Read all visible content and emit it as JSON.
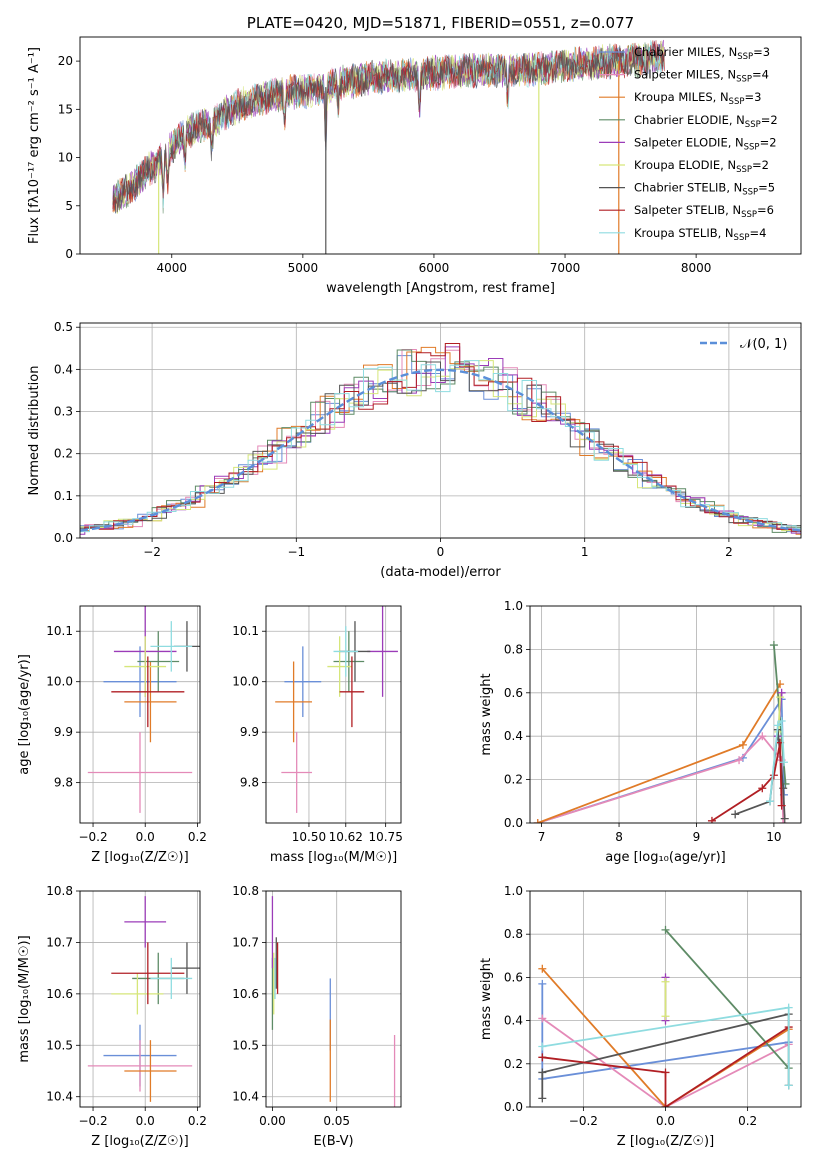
{
  "colors": {
    "chabrier_miles": "#6a8fd8",
    "salpeter_miles": "#e48ab8",
    "kroupa_miles": "#e07b28",
    "chabrier_elodie": "#5e8b66",
    "salpeter_elodie": "#9b3cb8",
    "kroupa_elodie": "#d6e67a",
    "chabrier_stelib": "#555555",
    "salpeter_stelib": "#b11f24",
    "kroupa_stelib": "#8fdce0",
    "gaussian": "#5b8fd9",
    "grid": "#b0b0b0"
  },
  "chart_data": [
    {
      "id": "spectrum",
      "type": "line",
      "title": "PLATE=0420, MJD=51871, FIBERID=0551, z=0.077",
      "xlabel": "wavelength [Angstrom, rest frame]",
      "ylabel": "Flux [fλ10⁻¹⁷ erg cm⁻² s⁻¹ A⁻¹]",
      "xlim": [
        3300,
        8800
      ],
      "ylim": [
        0,
        22.5
      ],
      "xticks": [
        4000,
        5000,
        6000,
        7000,
        8000
      ],
      "yticks": [
        0,
        5,
        10,
        15,
        20
      ],
      "grid": false,
      "legend_placement": "right",
      "series": [
        {
          "name": "Chabrier MILES, N",
          "sub": "SSP",
          "suffix": "=3",
          "color": "#6a8fd8"
        },
        {
          "name": "Salpeter MILES, N",
          "sub": "SSP",
          "suffix": "=4",
          "color": "#e48ab8"
        },
        {
          "name": "Kroupa MILES, N",
          "sub": "SSP",
          "suffix": "=3",
          "color": "#e07b28"
        },
        {
          "name": "Chabrier ELODIE, N",
          "sub": "SSP",
          "suffix": "=2",
          "color": "#5e8b66"
        },
        {
          "name": "Salpeter ELODIE, N",
          "sub": "SSP",
          "suffix": "=2",
          "color": "#9b3cb8"
        },
        {
          "name": "Kroupa ELODIE, N",
          "sub": "SSP",
          "suffix": "=2",
          "color": "#d6e67a"
        },
        {
          "name": "Chabrier STELIB, N",
          "sub": "SSP",
          "suffix": "=5",
          "color": "#555555"
        },
        {
          "name": "Salpeter STELIB, N",
          "sub": "SSP",
          "suffix": "=6",
          "color": "#b11f24"
        },
        {
          "name": "Kroupa STELIB, N",
          "sub": "SSP",
          "suffix": "=4",
          "color": "#8fdce0"
        }
      ],
      "continuum": [
        [
          3550,
          5.5
        ],
        [
          3700,
          7
        ],
        [
          3800,
          8.5
        ],
        [
          3900,
          9.5
        ],
        [
          4000,
          11
        ],
        [
          4100,
          12.5
        ],
        [
          4200,
          13.2
        ],
        [
          4300,
          13.5
        ],
        [
          4400,
          14.5
        ],
        [
          4500,
          15.3
        ],
        [
          4700,
          16.2
        ],
        [
          4900,
          16.8
        ],
        [
          5100,
          17
        ],
        [
          5300,
          17.8
        ],
        [
          5600,
          18.3
        ],
        [
          5900,
          18.6
        ],
        [
          6200,
          19
        ],
        [
          6500,
          19.1
        ],
        [
          6800,
          19.2
        ],
        [
          7000,
          19.5
        ],
        [
          7200,
          19.8
        ],
        [
          7400,
          20
        ],
        [
          7600,
          20.2
        ],
        [
          7750,
          20.5
        ]
      ],
      "absorption": [
        [
          3934,
          4.0
        ],
        [
          3968,
          3.0
        ],
        [
          4101,
          2.5
        ],
        [
          4305,
          2.5
        ],
        [
          4861,
          2.5
        ],
        [
          5175,
          5.5
        ],
        [
          5270,
          2.0
        ],
        [
          5890,
          3.5
        ],
        [
          6563,
          3.0
        ]
      ],
      "spikes": [
        [
          3900,
          0
        ],
        [
          5175,
          0
        ],
        [
          6800,
          0
        ],
        [
          7410,
          0
        ]
      ]
    },
    {
      "id": "residuals",
      "type": "histogram",
      "xlabel": "(data-model)/error",
      "ylabel": "Normed distribution",
      "xlim": [
        -2.5,
        2.5
      ],
      "ylim": [
        0,
        0.51
      ],
      "xticks": [
        -2,
        -1,
        0,
        1,
        2
      ],
      "xtick_labels": [
        "−2",
        "−1",
        "0",
        "1",
        "2"
      ],
      "yticks": [
        0,
        0.1,
        0.2,
        0.3,
        0.4,
        0.5
      ],
      "ytick_labels": [
        "0.0",
        "0.1",
        "0.2",
        "0.3",
        "0.4",
        "0.5"
      ],
      "grid": true,
      "legend": "𝒩(0, 1)",
      "legend_placement": "top-right",
      "bin_width": 0.1
    },
    {
      "id": "z_age",
      "type": "errorbar",
      "xlabel": "Z [log₁₀(Z/Z☉)]",
      "ylabel": "age  [log₁₀(age/yr)]",
      "xlim": [
        -0.25,
        0.21
      ],
      "ylim": [
        9.72,
        10.15
      ],
      "xticks": [
        -0.2,
        0,
        0.2
      ],
      "xtick_labels": [
        "−0.2",
        "0.0",
        "0.2"
      ],
      "yticks": [
        9.8,
        9.9,
        10.0,
        10.1
      ],
      "ytick_labels": [
        "9.8",
        "9.9",
        "10.0",
        "10.1"
      ],
      "grid": true,
      "points": [
        {
          "x": -0.02,
          "xe": 0.14,
          "y": 10.0,
          "ye": 0.07,
          "c": "#6a8fd8"
        },
        {
          "x": -0.02,
          "xe": 0.2,
          "y": 9.82,
          "ye": 0.08,
          "c": "#e48ab8"
        },
        {
          "x": 0.02,
          "xe": 0.1,
          "y": 9.96,
          "ye": 0.08,
          "c": "#e07b28"
        },
        {
          "x": 0.05,
          "xe": 0.08,
          "y": 10.04,
          "ye": 0.06,
          "c": "#5e8b66"
        },
        {
          "x": 0.0,
          "xe": 0.12,
          "y": 10.06,
          "ye": 0.09,
          "c": "#9b3cb8"
        },
        {
          "x": 0.0,
          "xe": 0.08,
          "y": 10.03,
          "ye": 0.06,
          "c": "#d6e67a"
        },
        {
          "x": 0.16,
          "xe": 0.05,
          "y": 10.07,
          "ye": 0.05,
          "c": "#555555"
        },
        {
          "x": 0.01,
          "xe": 0.14,
          "y": 9.98,
          "ye": 0.07,
          "c": "#b11f24"
        },
        {
          "x": 0.1,
          "xe": 0.08,
          "y": 10.07,
          "ye": 0.05,
          "c": "#8fdce0"
        }
      ]
    },
    {
      "id": "mass_age",
      "type": "errorbar",
      "xlabel": "mass [log₁₀(M/M☉)]",
      "ylabel": "",
      "xlim": [
        10.36,
        10.8
      ],
      "ylim": [
        9.72,
        10.15
      ],
      "xticks": [
        10.5,
        10.62,
        10.75
      ],
      "xtick_labels": [
        "10.50",
        "10.62",
        "10.75"
      ],
      "yticks": [
        9.8,
        9.9,
        10.0,
        10.1
      ],
      "ytick_labels": [
        "9.8",
        "9.9",
        "10.0",
        "10.1"
      ],
      "grid": true,
      "points": [
        {
          "x": 10.48,
          "xe": 0.06,
          "y": 10.0,
          "ye": 0.07,
          "c": "#6a8fd8"
        },
        {
          "x": 10.46,
          "xe": 0.05,
          "y": 9.82,
          "ye": 0.08,
          "c": "#e48ab8"
        },
        {
          "x": 10.45,
          "xe": 0.06,
          "y": 9.96,
          "ye": 0.08,
          "c": "#e07b28"
        },
        {
          "x": 10.63,
          "xe": 0.05,
          "y": 10.04,
          "ye": 0.06,
          "c": "#5e8b66"
        },
        {
          "x": 10.74,
          "xe": 0.05,
          "y": 10.06,
          "ye": 0.09,
          "c": "#9b3cb8"
        },
        {
          "x": 10.6,
          "xe": 0.04,
          "y": 10.03,
          "ye": 0.06,
          "c": "#d6e67a"
        },
        {
          "x": 10.65,
          "xe": 0.05,
          "y": 10.06,
          "ye": 0.06,
          "c": "#555555"
        },
        {
          "x": 10.64,
          "xe": 0.04,
          "y": 9.98,
          "ye": 0.07,
          "c": "#b11f24"
        },
        {
          "x": 10.62,
          "xe": 0.04,
          "y": 10.06,
          "ye": 0.05,
          "c": "#8fdce0"
        }
      ]
    },
    {
      "id": "age_weight",
      "type": "line",
      "xlabel": "age  [log₁₀(age/yr)]",
      "ylabel": "mass weight",
      "xlim": [
        6.85,
        10.35
      ],
      "ylim": [
        0,
        1.0
      ],
      "xticks": [
        7,
        8,
        9,
        10
      ],
      "xtick_labels": [
        "7",
        "8",
        "9",
        "10"
      ],
      "yticks": [
        0,
        0.2,
        0.4,
        0.6,
        0.8,
        1.0
      ],
      "ytick_labels": [
        "0.0",
        "0.2",
        "0.4",
        "0.6",
        "0.8",
        "1.0"
      ],
      "grid": true,
      "series": [
        {
          "c": "#6a8fd8",
          "pts": [
            [
              6.95,
              0.0
            ],
            [
              9.6,
              0.3
            ],
            [
              10.1,
              0.57
            ],
            [
              10.13,
              0.13
            ]
          ]
        },
        {
          "c": "#e48ab8",
          "pts": [
            [
              6.95,
              0.0
            ],
            [
              9.55,
              0.29
            ],
            [
              9.85,
              0.4
            ],
            [
              10.1,
              0.29
            ],
            [
              10.12,
              0.0
            ]
          ]
        },
        {
          "c": "#e07b28",
          "pts": [
            [
              6.95,
              0.0
            ],
            [
              9.6,
              0.36
            ],
            [
              10.08,
              0.64
            ]
          ]
        },
        {
          "c": "#5e8b66",
          "pts": [
            [
              10.0,
              0.82
            ],
            [
              10.15,
              0.18
            ]
          ]
        },
        {
          "c": "#9b3cb8",
          "pts": [
            [
              10.05,
              0.4
            ],
            [
              10.1,
              0.6
            ]
          ]
        },
        {
          "c": "#d6e67a",
          "pts": [
            [
              10.06,
              0.42
            ],
            [
              10.08,
              0.58
            ]
          ]
        },
        {
          "c": "#555555",
          "pts": [
            [
              9.5,
              0.04
            ],
            [
              9.95,
              0.1
            ],
            [
              10.05,
              0.43
            ],
            [
              10.12,
              0.16
            ],
            [
              10.14,
              0.02
            ]
          ]
        },
        {
          "c": "#b11f24",
          "pts": [
            [
              9.2,
              0.01
            ],
            [
              9.85,
              0.16
            ],
            [
              10.0,
              0.22
            ],
            [
              10.08,
              0.37
            ],
            [
              10.1,
              0.08
            ]
          ]
        },
        {
          "c": "#8fdce0",
          "pts": [
            [
              9.95,
              0.1
            ],
            [
              10.05,
              0.45
            ],
            [
              10.1,
              0.47
            ],
            [
              10.13,
              0.28
            ]
          ]
        }
      ]
    },
    {
      "id": "z_mass",
      "type": "errorbar",
      "xlabel": "Z [log₁₀(Z/Z☉)]",
      "ylabel": "mass [log₁₀(M/M☉)]",
      "xlim": [
        -0.25,
        0.21
      ],
      "ylim": [
        10.38,
        10.8
      ],
      "xticks": [
        -0.2,
        0,
        0.2
      ],
      "xtick_labels": [
        "−0.2",
        "0.0",
        "0.2"
      ],
      "yticks": [
        10.4,
        10.5,
        10.6,
        10.7,
        10.8
      ],
      "ytick_labels": [
        "10.4",
        "10.5",
        "10.6",
        "10.7",
        "10.8"
      ],
      "grid": true,
      "points": [
        {
          "x": -0.02,
          "xe": 0.14,
          "y": 10.48,
          "ye": 0.06,
          "c": "#6a8fd8"
        },
        {
          "x": -0.02,
          "xe": 0.2,
          "y": 10.46,
          "ye": 0.05,
          "c": "#e48ab8"
        },
        {
          "x": 0.02,
          "xe": 0.1,
          "y": 10.45,
          "ye": 0.06,
          "c": "#e07b28"
        },
        {
          "x": 0.05,
          "xe": 0.1,
          "y": 10.63,
          "ye": 0.05,
          "c": "#5e8b66"
        },
        {
          "x": 0.0,
          "xe": 0.08,
          "y": 10.74,
          "ye": 0.05,
          "c": "#9b3cb8"
        },
        {
          "x": -0.03,
          "xe": 0.1,
          "y": 10.6,
          "ye": 0.04,
          "c": "#d6e67a"
        },
        {
          "x": 0.16,
          "xe": 0.06,
          "y": 10.65,
          "ye": 0.05,
          "c": "#555555"
        },
        {
          "x": 0.01,
          "xe": 0.14,
          "y": 10.64,
          "ye": 0.06,
          "c": "#b11f24"
        },
        {
          "x": 0.1,
          "xe": 0.08,
          "y": 10.63,
          "ye": 0.04,
          "c": "#8fdce0"
        }
      ]
    },
    {
      "id": "ebv_mass",
      "type": "errorbar",
      "xlabel": "E(B-V)",
      "ylabel": "",
      "xlim": [
        -0.005,
        0.1
      ],
      "ylim": [
        10.38,
        10.8
      ],
      "xticks": [
        0,
        0.05
      ],
      "xtick_labels": [
        "0.00",
        "0.05"
      ],
      "yticks": [
        10.4,
        10.5,
        10.6,
        10.7,
        10.8
      ],
      "ytick_labels": [
        "10.4",
        "10.5",
        "10.6",
        "10.7",
        "10.8"
      ],
      "grid": true,
      "points": [
        {
          "x": 0.045,
          "xe": 0.0,
          "y": 10.56,
          "ye": 0.07,
          "c": "#6a8fd8"
        },
        {
          "x": 0.095,
          "xe": 0.0,
          "y": 10.45,
          "ye": 0.07,
          "c": "#e48ab8"
        },
        {
          "x": 0.045,
          "xe": 0.0,
          "y": 10.47,
          "ye": 0.08,
          "c": "#e07b28"
        },
        {
          "x": 0.0,
          "xe": 0.0,
          "y": 10.6,
          "ye": 0.07,
          "c": "#5e8b66"
        },
        {
          "x": 0.0,
          "xe": 0.0,
          "y": 10.72,
          "ye": 0.07,
          "c": "#9b3cb8"
        },
        {
          "x": 0.001,
          "xe": 0.0,
          "y": 10.62,
          "ye": 0.06,
          "c": "#d6e67a"
        },
        {
          "x": 0.003,
          "xe": 0.0,
          "y": 10.66,
          "ye": 0.05,
          "c": "#555555"
        },
        {
          "x": 0.004,
          "xe": 0.0,
          "y": 10.65,
          "ye": 0.05,
          "c": "#b11f24"
        },
        {
          "x": 0.002,
          "xe": 0.0,
          "y": 10.63,
          "ye": 0.04,
          "c": "#8fdce0"
        }
      ]
    },
    {
      "id": "z_weight",
      "type": "line",
      "xlabel": "Z [log₁₀(Z/Z☉)]",
      "ylabel": "mass weight",
      "xlim": [
        -0.33,
        0.33
      ],
      "ylim": [
        0,
        1.0
      ],
      "xticks": [
        -0.2,
        0,
        0.2
      ],
      "xtick_labels": [
        "−0.2",
        "0.0",
        "0.2"
      ],
      "yticks": [
        0,
        0.2,
        0.4,
        0.6,
        0.8,
        1.0
      ],
      "ytick_labels": [
        "0.0",
        "0.2",
        "0.4",
        "0.6",
        "0.8",
        "1.0"
      ],
      "grid": true,
      "series": [
        {
          "c": "#6a8fd8",
          "pts": [
            [
              -0.3,
              0.57
            ],
            [
              -0.3,
              0.13
            ],
            [
              0.3,
              0.3
            ]
          ]
        },
        {
          "c": "#e48ab8",
          "pts": [
            [
              -0.3,
              0.41
            ],
            [
              0.0,
              0.0
            ],
            [
              0.3,
              0.29
            ]
          ]
        },
        {
          "c": "#e07b28",
          "pts": [
            [
              -0.3,
              0.64
            ],
            [
              0.0,
              0.0
            ],
            [
              0.3,
              0.36
            ]
          ]
        },
        {
          "c": "#5e8b66",
          "pts": [
            [
              0.0,
              0.82
            ],
            [
              0.3,
              0.18
            ]
          ]
        },
        {
          "c": "#9b3cb8",
          "pts": [
            [
              0.0,
              0.6
            ],
            [
              0.0,
              0.4
            ]
          ]
        },
        {
          "c": "#d6e67a",
          "pts": [
            [
              0.0,
              0.58
            ],
            [
              0.0,
              0.42
            ]
          ]
        },
        {
          "c": "#555555",
          "pts": [
            [
              -0.3,
              0.04
            ],
            [
              -0.3,
              0.16
            ],
            [
              0.3,
              0.43
            ],
            [
              0.3,
              0.1
            ]
          ]
        },
        {
          "c": "#b11f24",
          "pts": [
            [
              -0.3,
              0.23
            ],
            [
              0.0,
              0.16
            ],
            [
              0.0,
              0.0
            ],
            [
              0.3,
              0.37
            ]
          ]
        },
        {
          "c": "#8fdce0",
          "pts": [
            [
              -0.3,
              0.28
            ],
            [
              0.3,
              0.46
            ],
            [
              0.3,
              0.1
            ]
          ]
        }
      ]
    }
  ]
}
